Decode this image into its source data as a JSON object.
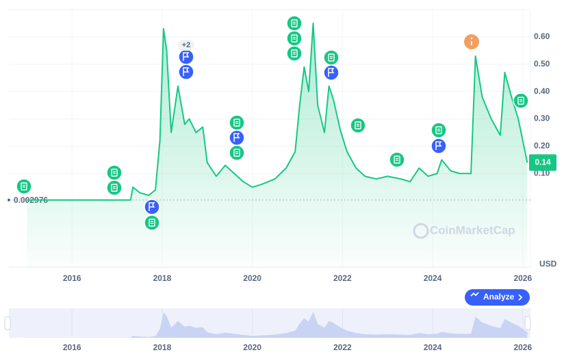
{
  "chart_data": {
    "type": "line",
    "color": "#16c784",
    "grid": true,
    "x": [
      2015.0,
      2016.0,
      2017.0,
      2017.3,
      2017.35,
      2017.5,
      2017.7,
      2017.85,
      2017.95,
      2018.03,
      2018.1,
      2018.2,
      2018.35,
      2018.5,
      2018.6,
      2018.75,
      2018.9,
      2019.0,
      2019.2,
      2019.4,
      2019.6,
      2019.8,
      2020.0,
      2020.2,
      2020.5,
      2020.75,
      2020.95,
      2021.05,
      2021.15,
      2021.25,
      2021.35,
      2021.45,
      2021.6,
      2021.7,
      2021.8,
      2021.95,
      2022.1,
      2022.3,
      2022.5,
      2022.75,
      2023.0,
      2023.3,
      2023.5,
      2023.7,
      2023.9,
      2024.1,
      2024.2,
      2024.4,
      2024.6,
      2024.85,
      2024.95,
      2025.1,
      2025.3,
      2025.5,
      2025.6,
      2025.75,
      2025.9,
      2026.1
    ],
    "values": [
      0.003,
      0.003,
      0.003,
      0.003,
      0.05,
      0.03,
      0.02,
      0.04,
      0.22,
      0.63,
      0.55,
      0.25,
      0.42,
      0.28,
      0.3,
      0.25,
      0.27,
      0.14,
      0.09,
      0.13,
      0.1,
      0.07,
      0.05,
      0.06,
      0.08,
      0.12,
      0.18,
      0.35,
      0.49,
      0.4,
      0.65,
      0.35,
      0.25,
      0.42,
      0.37,
      0.26,
      0.18,
      0.12,
      0.09,
      0.08,
      0.09,
      0.08,
      0.07,
      0.12,
      0.09,
      0.1,
      0.15,
      0.11,
      0.1,
      0.1,
      0.53,
      0.38,
      0.3,
      0.24,
      0.47,
      0.38,
      0.3,
      0.14
    ],
    "xlim": [
      2014.6,
      2026.17
    ],
    "xticks": [
      2016,
      2018,
      2020,
      2022,
      2024,
      2026
    ],
    "ylim": [
      -0.243,
      0.7
    ],
    "yticks": [
      {
        "value": 0.1,
        "label": "0.10"
      },
      {
        "value": 0.2,
        "label": "0.20"
      },
      {
        "value": 0.3,
        "label": "0.30"
      },
      {
        "value": 0.4,
        "label": "0.40"
      },
      {
        "value": 0.5,
        "label": "0.50"
      },
      {
        "value": 0.6,
        "label": "0.60"
      }
    ],
    "start_value": 0.002976,
    "unit": "USD",
    "event_badge": "+2",
    "button": "Analyze",
    "watermark": "CoinMarketCap"
  }
}
